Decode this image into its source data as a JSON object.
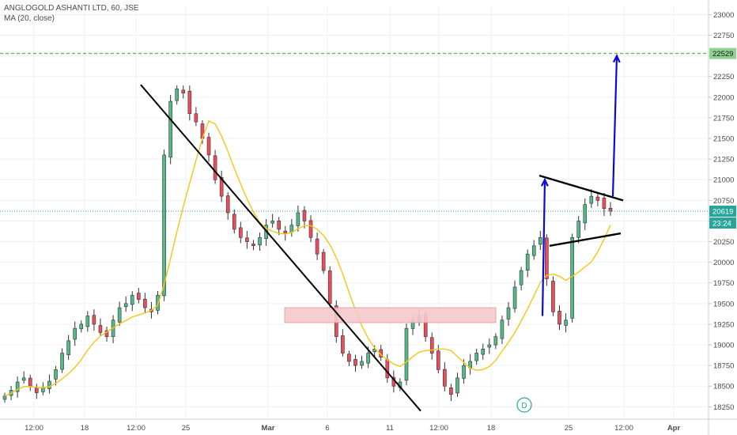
{
  "legend": {
    "symbol": "ANGLOGOLD ASHANTI LTD, 60, JSE",
    "indicator": "MA (20, close)"
  },
  "price_badges": {
    "target": "22529",
    "last": "20619",
    "countdown": "23:24"
  },
  "event_marker": "D",
  "colors": {
    "up": "#53b987",
    "down": "#eb4d5c",
    "ma": "#f5c518",
    "trendline": "#000000",
    "arrow": "#0a0ad8",
    "target_line": "#5fb85f",
    "zone_fill": "#f7c9cc",
    "zone_border": "#e59aa0",
    "badge_teal": "#26a69a",
    "badge_green": "#8fd18f"
  },
  "chart_data": {
    "type": "candlestick",
    "title": "ANGLOGOLD ASHANTI LTD, 60, JSE",
    "indicator": "MA (20, close)",
    "x_tick_labels": [
      "12:00",
      "18",
      "12:00",
      "25",
      "Mar",
      "6",
      "11",
      "12:00",
      "18",
      "25",
      "12:00",
      "Apr"
    ],
    "y_tick_labels": [
      "18250",
      "18500",
      "18750",
      "19000",
      "19250",
      "19500",
      "19750",
      "20000",
      "20250",
      "20500",
      "20750",
      "21000",
      "21250",
      "21500",
      "21750",
      "22000",
      "22250",
      "22500",
      "22750",
      "23000"
    ],
    "ylim": [
      18100,
      23100
    ],
    "last_price": 20619,
    "target_level": 22529,
    "candles_approx_closes": [
      18380,
      18450,
      18550,
      18600,
      18500,
      18420,
      18480,
      18560,
      18700,
      18900,
      19050,
      19200,
      19250,
      19350,
      19250,
      19150,
      19100,
      19300,
      19450,
      19500,
      19600,
      19550,
      19450,
      19400,
      19600,
      21300,
      21950,
      22100,
      22050,
      21800,
      21700,
      21500,
      21300,
      21000,
      20800,
      20600,
      20400,
      20300,
      20250,
      20200,
      20300,
      20450,
      20500,
      20400,
      20350,
      20450,
      20600,
      20500,
      20300,
      20100,
      19900,
      19500,
      19100,
      18900,
      18800,
      18750,
      18800,
      18900,
      18950,
      18850,
      18600,
      18500,
      18550,
      19200,
      19300,
      19350,
      19100,
      18900,
      18700,
      18500,
      18400,
      18600,
      18750,
      18800,
      18900,
      18950,
      19000,
      19100,
      19300,
      19450,
      19700,
      19900,
      20100,
      20200,
      20300,
      19800,
      19400,
      19250,
      19300,
      20300,
      20500,
      20700,
      20800,
      20750,
      20650,
      20619
    ],
    "annotations": {
      "descending_trendline": [
        "Feb 21 22150",
        "Mar 13 18200"
      ],
      "resistance_zone": [
        19270,
        19450
      ],
      "pennant": {
        "upper": [
          "21050",
          "20750"
        ],
        "lower": [
          "20200",
          "20350"
        ]
      },
      "target": 22529
    }
  }
}
